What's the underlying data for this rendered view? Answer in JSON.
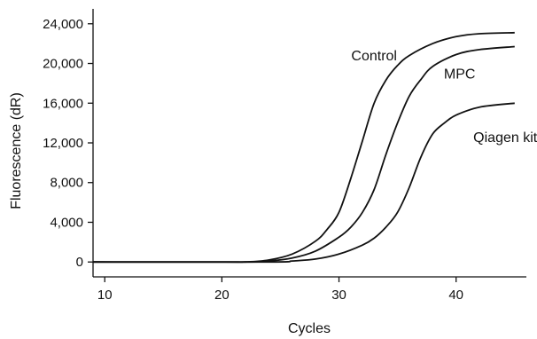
{
  "chart_data": {
    "type": "line",
    "xlabel": "Cycles",
    "ylabel": "Fluorescence (dR)",
    "xlim": [
      9,
      46
    ],
    "ylim": [
      -1500,
      25500
    ],
    "x_ticks": [
      10,
      20,
      30,
      40
    ],
    "x_tick_labels": [
      "10",
      "20",
      "30",
      "40"
    ],
    "y_ticks": [
      0,
      4000,
      8000,
      12000,
      16000,
      20000,
      24000
    ],
    "y_tick_labels": [
      "0",
      "4,000",
      "8,000",
      "12,000",
      "16,000",
      "20,000",
      "24,000"
    ],
    "grid": false,
    "legend": "none",
    "series": [
      {
        "name": "Control",
        "x": [
          9,
          20,
          22,
          24,
          26,
          28,
          29,
          30,
          31,
          32,
          33,
          34,
          35,
          36,
          38,
          40,
          42,
          45
        ],
        "y": [
          0,
          0,
          0,
          200,
          800,
          2100,
          3300,
          5000,
          8400,
          12200,
          16000,
          18300,
          19800,
          20800,
          22000,
          22700,
          23000,
          23100
        ],
        "label_x": 33,
        "label_y": 20300
      },
      {
        "name": "MPC",
        "x": [
          9,
          22,
          24,
          26,
          28,
          30,
          31,
          32,
          33,
          34,
          35,
          36,
          37,
          38,
          40,
          42,
          45
        ],
        "y": [
          0,
          0,
          100,
          400,
          1100,
          2500,
          3500,
          5000,
          7300,
          10800,
          14000,
          16700,
          18400,
          19700,
          20900,
          21400,
          21700
        ],
        "label_x": 40.3,
        "label_y": 18500
      },
      {
        "name": "Qiagen kit",
        "x": [
          9,
          24,
          26,
          28,
          30,
          32,
          33,
          34,
          35,
          36,
          37,
          38,
          39,
          40,
          42,
          45
        ],
        "y": [
          0,
          0,
          100,
          300,
          800,
          1700,
          2400,
          3500,
          5000,
          7500,
          10600,
          12900,
          14000,
          14800,
          15600,
          16000
        ],
        "label_x": 44.2,
        "label_y": 12100
      }
    ]
  }
}
